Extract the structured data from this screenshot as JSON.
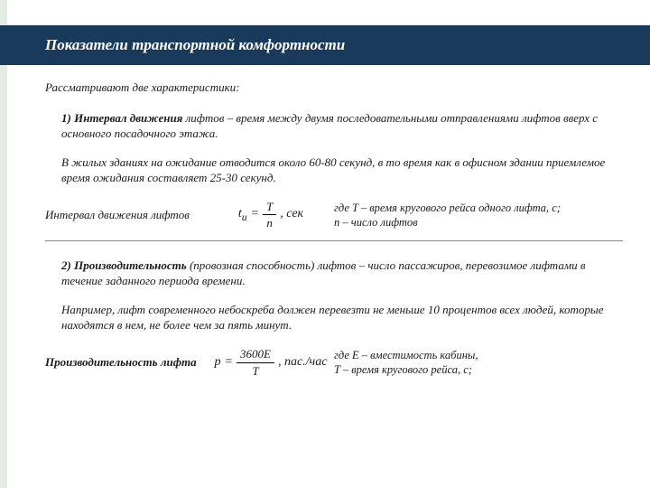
{
  "title": "Показатели транспортной комфортности",
  "intro": "Рассматривают две характеристики:",
  "item1": {
    "label": "1) Интервал движения ",
    "rest": "лифтов – время между двумя последовательными отправлениями лифтов вверх с основного посадочного этажа."
  },
  "note1": "В жилых зданиях на ожидание отводится около 60-80 секунд, в то время как в офисном здании приемлемое время ожидания составляет 25-30 секунд.",
  "formula1": {
    "label": "Интервал движения лифтов",
    "lhs": "t",
    "sub": "u",
    "num": "T",
    "den": "n",
    "unit": ", сек",
    "desc_line1": "где T – время кругового рейса одного лифта, с;",
    "desc_line2": "n – число лифтов"
  },
  "item2": {
    "label": "2) Производительность ",
    "rest": "(провозная способность) лифтов – число пассажиров, перевозимое лифтами в течение заданного периода времени."
  },
  "note2": "Например, лифт современного небоскреба должен перевезти не меньше 10 процентов всех людей, которые находятся в нем, не более чем за пять минут.",
  "formula2": {
    "label": "Производительность лифта",
    "lhs": "p",
    "num": "3600E",
    "den": "T",
    "unit": ", пас./час",
    "desc_line1": "где E – вместимость кабины,",
    "desc_line2": "T – время кругового рейса, с;"
  }
}
